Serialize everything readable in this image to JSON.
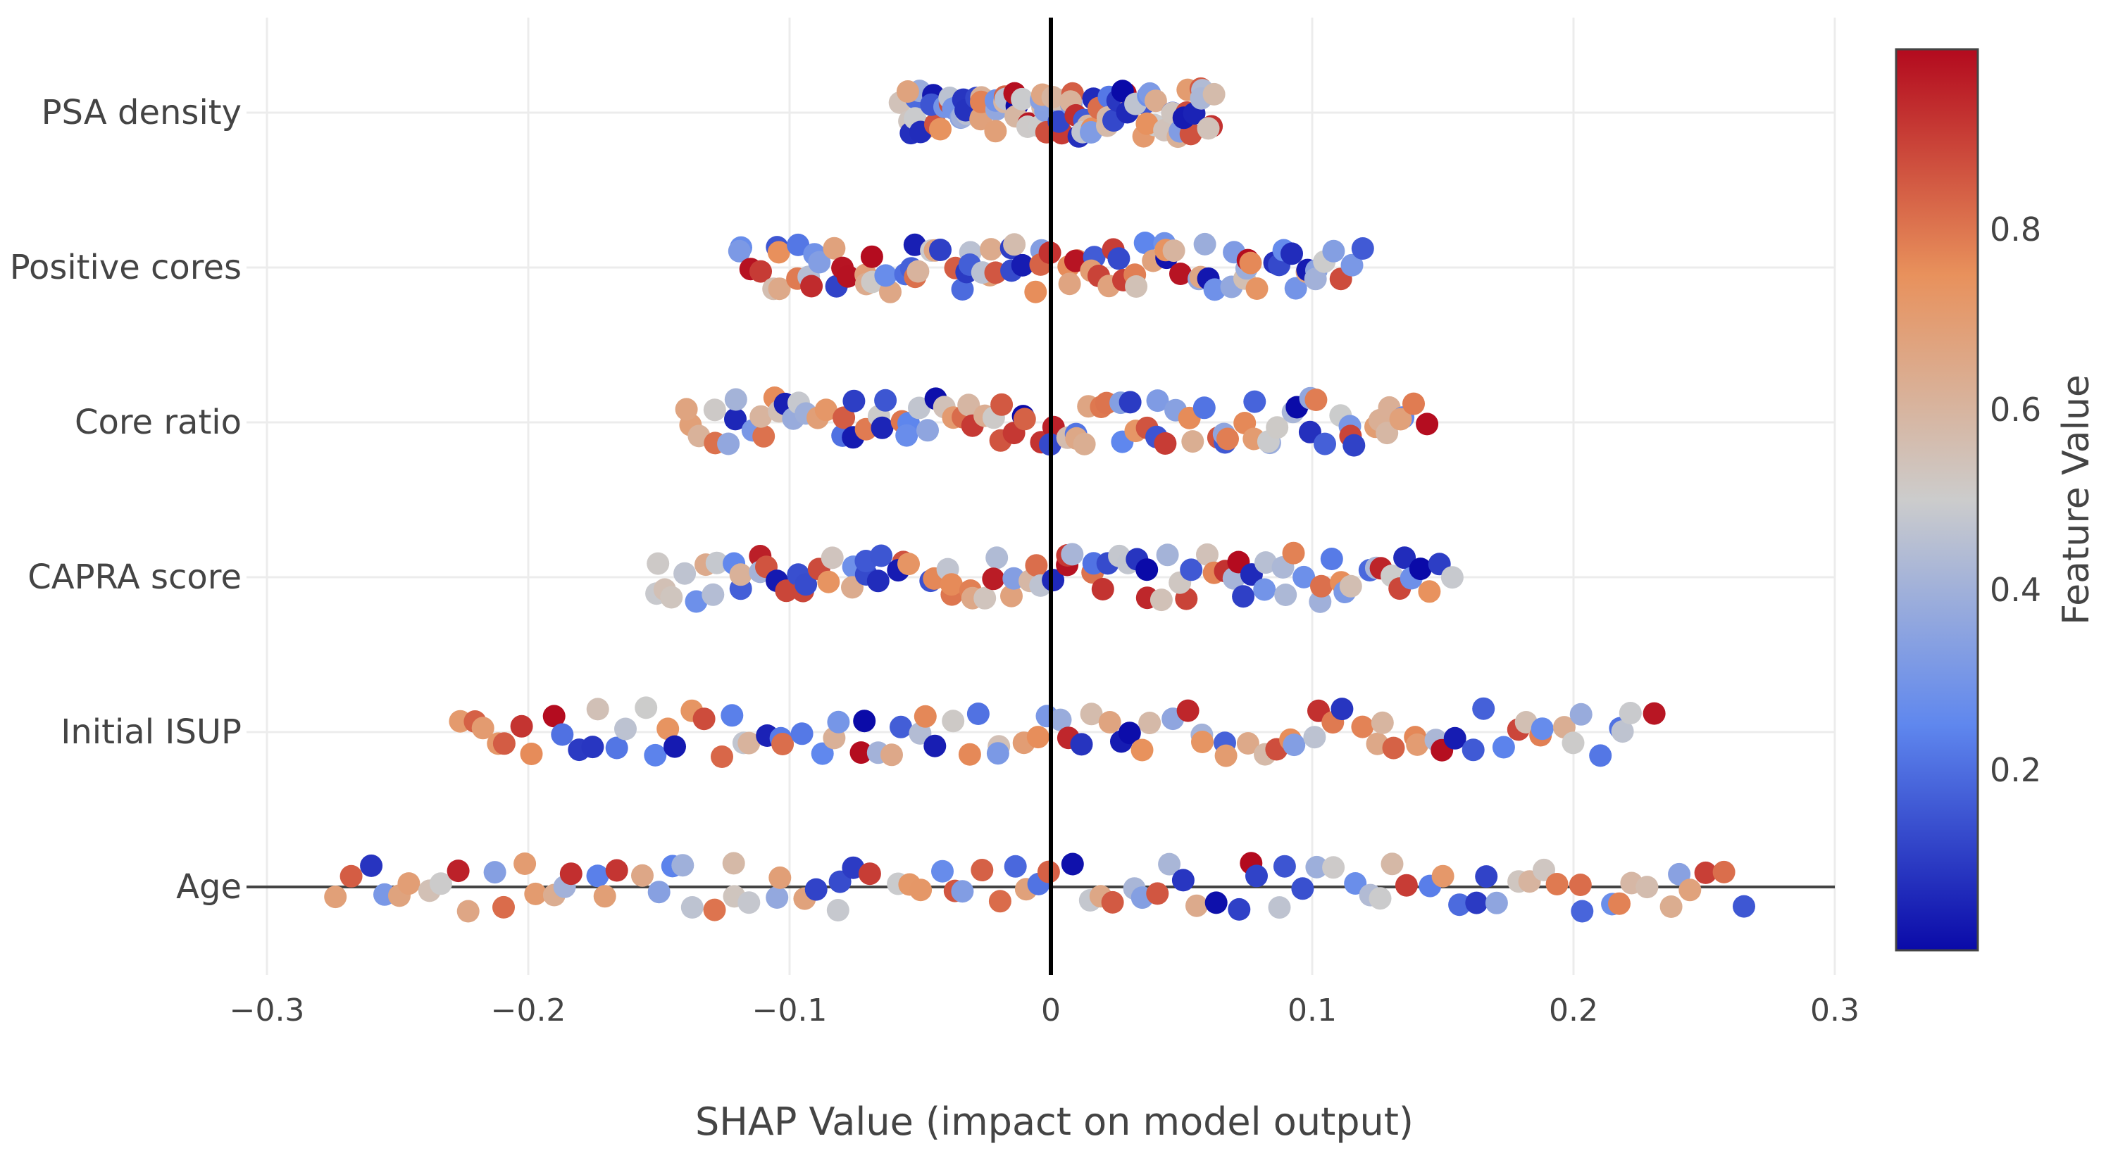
{
  "chart_data": {
    "type": "scatter",
    "subtype": "shap-beeswarm",
    "title": "",
    "xlabel": "SHAP Value (impact on model output)",
    "ylabel": "",
    "xlim": [
      -0.3,
      0.3
    ],
    "x_ticks": [
      -0.3,
      -0.2,
      -0.1,
      0,
      0.1,
      0.2,
      0.3
    ],
    "x_tick_labels": [
      "−0.3",
      "−0.2",
      "−0.1",
      "0",
      "0.1",
      "0.2",
      "0.3"
    ],
    "features": [
      "PSA density",
      "Positive cores",
      "Core ratio",
      "CAPRA score",
      "Initial ISUP",
      "Age"
    ],
    "feature_ranges": [
      [
        -0.059,
        0.063
      ],
      [
        -0.12,
        0.118
      ],
      [
        -0.141,
        0.144
      ],
      [
        -0.155,
        0.155
      ],
      [
        -0.228,
        0.232
      ],
      [
        -0.275,
        0.266
      ]
    ],
    "points_per_feature": 95,
    "grid": true,
    "zero_line": true,
    "colorbar": {
      "title": "Feature Value",
      "range": [
        0,
        1
      ],
      "ticks": [
        0.2,
        0.4,
        0.6,
        0.8
      ],
      "tick_labels": [
        "0.2",
        "0.4",
        "0.6",
        "0.8"
      ],
      "colorscale": [
        "#0a0aa8",
        "#5f87ee",
        "#cccccc",
        "#e8915c",
        "#b30a1e"
      ]
    },
    "legend": "right"
  }
}
